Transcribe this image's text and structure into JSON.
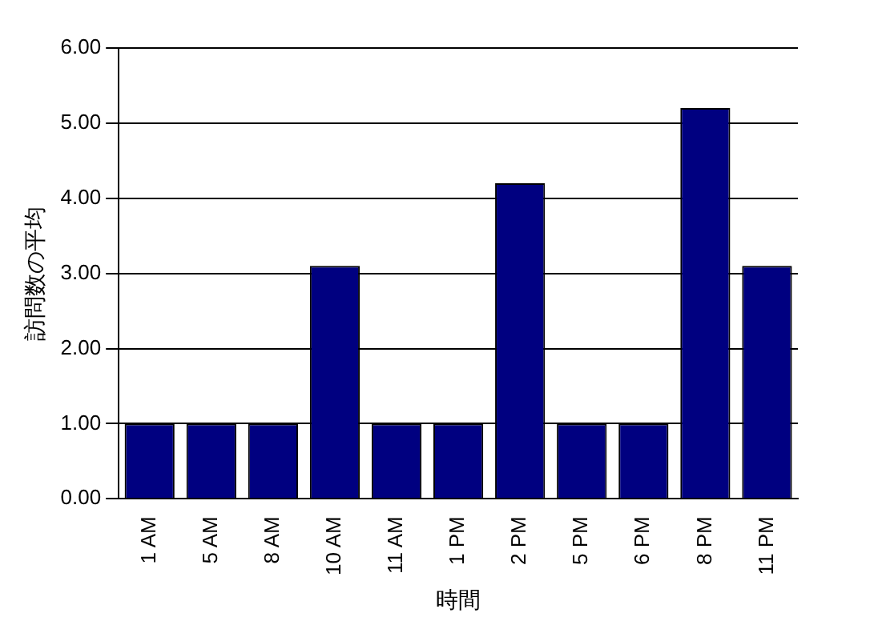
{
  "chart_data": {
    "type": "bar",
    "xlabel": "時間",
    "ylabel": "訪問数の平均",
    "categories": [
      "1 AM",
      "5 AM",
      "8 AM",
      "10 AM",
      "11 AM",
      "1 PM",
      "2 PM",
      "5 PM",
      "6 PM",
      "8 PM",
      "11 PM"
    ],
    "values": [
      1,
      1,
      1,
      3.1,
      1,
      1,
      4.2,
      1,
      1,
      5.2,
      3.1
    ],
    "color": "#000080",
    "ylim": [
      0,
      6
    ],
    "yticks": [
      {
        "value": 0,
        "label": "0.00"
      },
      {
        "value": 1,
        "label": "1.00"
      },
      {
        "value": 2,
        "label": "2.00"
      },
      {
        "value": 3,
        "label": "3.00"
      },
      {
        "value": 4,
        "label": "4.00"
      },
      {
        "value": 5,
        "label": "5.00"
      },
      {
        "value": 6,
        "label": "6.00"
      }
    ],
    "grid": "y",
    "legend": false
  }
}
